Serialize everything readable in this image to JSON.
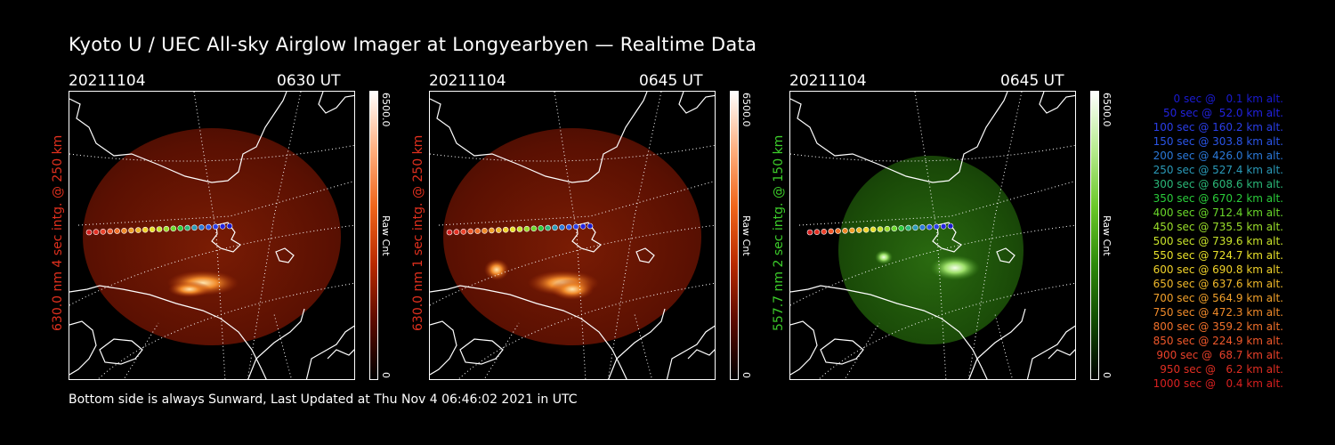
{
  "title": "Kyoto U / UEC All-sky Airglow Imager at Longyearbyen — Realtime Data",
  "panels": [
    {
      "date": "20211104",
      "time": "0630 UT",
      "ylabel": "630.0 nm 4 sec intg. @ 250 km",
      "label_color": "#e0301e",
      "cbar_max": "6500.0",
      "cbar_min": "0",
      "cbar_unit": "Raw Cnt",
      "colormap": "red"
    },
    {
      "date": "20211104",
      "time": "0645 UT",
      "ylabel": "630.0 nm 1 sec intg. @ 250 km",
      "label_color": "#e0301e",
      "cbar_max": "6500.0",
      "cbar_min": "0",
      "cbar_unit": "Raw Cnt",
      "colormap": "red"
    },
    {
      "date": "20211104",
      "time": "0645 UT",
      "ylabel": "557.7 nm 2 sec intg. @ 150 km",
      "label_color": "#3ccc2a",
      "cbar_max": "6500.0",
      "cbar_min": "0",
      "cbar_unit": "Raw Cnt",
      "colormap": "green"
    }
  ],
  "legend": [
    {
      "text": "0 sec @   0.1 km alt.",
      "color": "#1a1ad0"
    },
    {
      "text": "50 sec @  52.0 km alt.",
      "color": "#2222e0"
    },
    {
      "text": "100 sec @ 160.2 km alt.",
      "color": "#2a3ee8"
    },
    {
      "text": "150 sec @ 303.8 km alt.",
      "color": "#2a55e8"
    },
    {
      "text": "200 sec @ 426.0 km alt.",
      "color": "#2a78d8"
    },
    {
      "text": "250 sec @ 527.4 km alt.",
      "color": "#2a9ab8"
    },
    {
      "text": "300 sec @ 608.6 km alt.",
      "color": "#2ab878"
    },
    {
      "text": "350 sec @ 670.2 km alt.",
      "color": "#2acc3a"
    },
    {
      "text": "400 sec @ 712.4 km alt.",
      "color": "#6ad82a"
    },
    {
      "text": "450 sec @ 735.5 km alt.",
      "color": "#9ade2a"
    },
    {
      "text": "500 sec @ 739.6 km alt.",
      "color": "#c8e22a"
    },
    {
      "text": "550 sec @ 724.7 km alt.",
      "color": "#e8e02a"
    },
    {
      "text": "600 sec @ 690.8 km alt.",
      "color": "#f0d22a"
    },
    {
      "text": "650 sec @ 637.6 km alt.",
      "color": "#f0b82a"
    },
    {
      "text": "700 sec @ 564.9 km alt.",
      "color": "#f0a02a"
    },
    {
      "text": "750 sec @ 472.3 km alt.",
      "color": "#f08a2a"
    },
    {
      "text": "800 sec @ 359.2 km alt.",
      "color": "#f0702a"
    },
    {
      "text": "850 sec @ 224.9 km alt.",
      "color": "#f0582a"
    },
    {
      "text": "900 sec @  68.7 km alt.",
      "color": "#e8402a"
    },
    {
      "text": "950 sec @   6.2 km alt.",
      "color": "#e02e22"
    },
    {
      "text": "1000 sec @   0.4 km alt.",
      "color": "#d82020"
    }
  ],
  "footer": "Bottom side is always Sunward, Last Updated at Thu Nov  4 06:46:02 2021 in UTC"
}
